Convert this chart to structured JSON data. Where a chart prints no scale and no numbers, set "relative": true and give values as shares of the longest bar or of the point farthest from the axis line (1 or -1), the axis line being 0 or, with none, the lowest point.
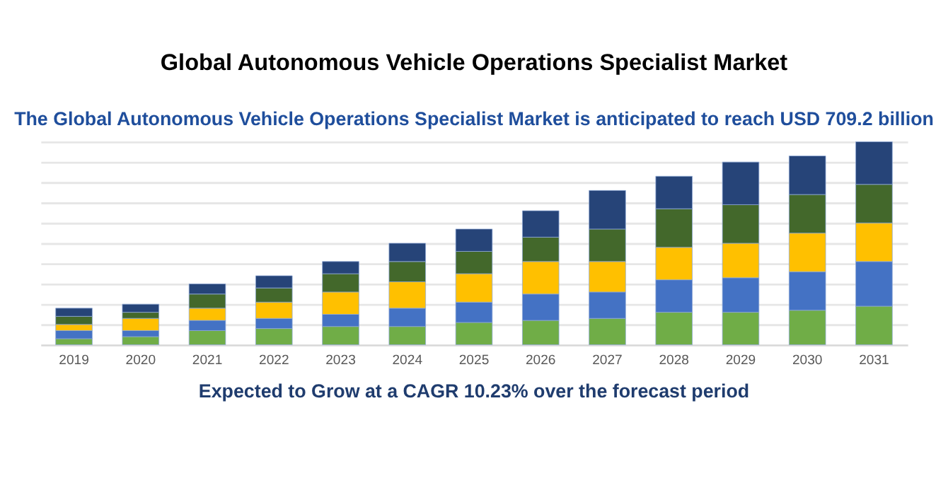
{
  "chart_data": {
    "type": "bar",
    "title": "Global Autonomous Vehicle Operations Specialist Market",
    "subtitle": "The Global Autonomous Vehicle Operations Specialist Market is anticipated to reach USD 709.2 billion",
    "annotations": [
      "Expected to Grow at a CAGR 10.23% over the forecast period"
    ],
    "categories": [
      "2019",
      "2020",
      "2021",
      "2022",
      "2023",
      "2024",
      "2025",
      "2026",
      "2027",
      "2028",
      "2029",
      "2030",
      "2031"
    ],
    "stacked": true,
    "relative": true,
    "grid": true,
    "legend": false,
    "series": [
      {
        "color": "#70ad47",
        "values": [
          0.03,
          0.04,
          0.07,
          0.08,
          0.09,
          0.09,
          0.11,
          0.12,
          0.13,
          0.16,
          0.16,
          0.17,
          0.19
        ]
      },
      {
        "color": "#4472c4",
        "values": [
          0.04,
          0.03,
          0.05,
          0.05,
          0.06,
          0.09,
          0.1,
          0.13,
          0.13,
          0.16,
          0.17,
          0.19,
          0.22
        ]
      },
      {
        "color": "#ffc000",
        "values": [
          0.03,
          0.06,
          0.06,
          0.08,
          0.11,
          0.13,
          0.14,
          0.16,
          0.15,
          0.16,
          0.17,
          0.19,
          0.19
        ]
      },
      {
        "color": "#43682b",
        "values": [
          0.04,
          0.03,
          0.07,
          0.07,
          0.09,
          0.1,
          0.11,
          0.12,
          0.16,
          0.19,
          0.19,
          0.19,
          0.19
        ]
      },
      {
        "color": "#264478",
        "values": [
          0.04,
          0.04,
          0.05,
          0.06,
          0.06,
          0.09,
          0.11,
          0.13,
          0.19,
          0.16,
          0.21,
          0.19,
          0.21
        ]
      }
    ]
  }
}
